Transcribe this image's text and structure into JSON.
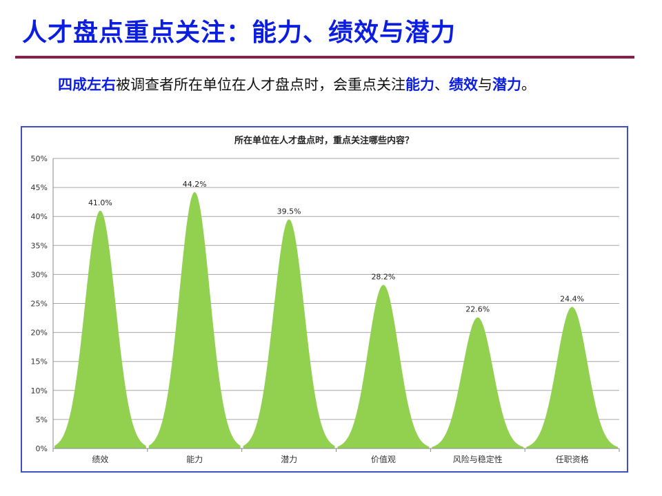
{
  "slide": {
    "title": "人才盘点重点关注：能力、绩效与潜力",
    "paragraph": {
      "p1": "四成左右",
      "p2": "被调查者所在单位在人才盘点时，会重点关注",
      "p3": "能力",
      "p4": "、",
      "p5": "绩效",
      "p6": "与",
      "p7": "潜力",
      "p8": "。"
    }
  },
  "colors": {
    "title": "#0b1ee0",
    "rule": "#8b1d4d",
    "frame": "#3b4fc4",
    "peak_fill": "#92d050",
    "grid": "#a6a6a6"
  },
  "chart_data": {
    "type": "area",
    "title": "所在单位在人才盘点时，重点关注哪些内容？",
    "categories": [
      "绩效",
      "能力",
      "潜力",
      "价值观",
      "风险与稳定性",
      "任职资格"
    ],
    "values": [
      41.0,
      44.2,
      39.5,
      28.2,
      22.6,
      24.4
    ],
    "data_labels": [
      "41.0%",
      "44.2%",
      "39.5%",
      "28.2%",
      "22.6%",
      "24.4%"
    ],
    "ylim": [
      0,
      50
    ],
    "yticks": [
      0,
      5,
      10,
      15,
      20,
      25,
      30,
      35,
      40,
      45,
      50
    ],
    "ytick_labels": [
      "0%",
      "5%",
      "10%",
      "15%",
      "20%",
      "25%",
      "30%",
      "35%",
      "40%",
      "45%",
      "50%"
    ],
    "grid": true,
    "legend": "none"
  }
}
